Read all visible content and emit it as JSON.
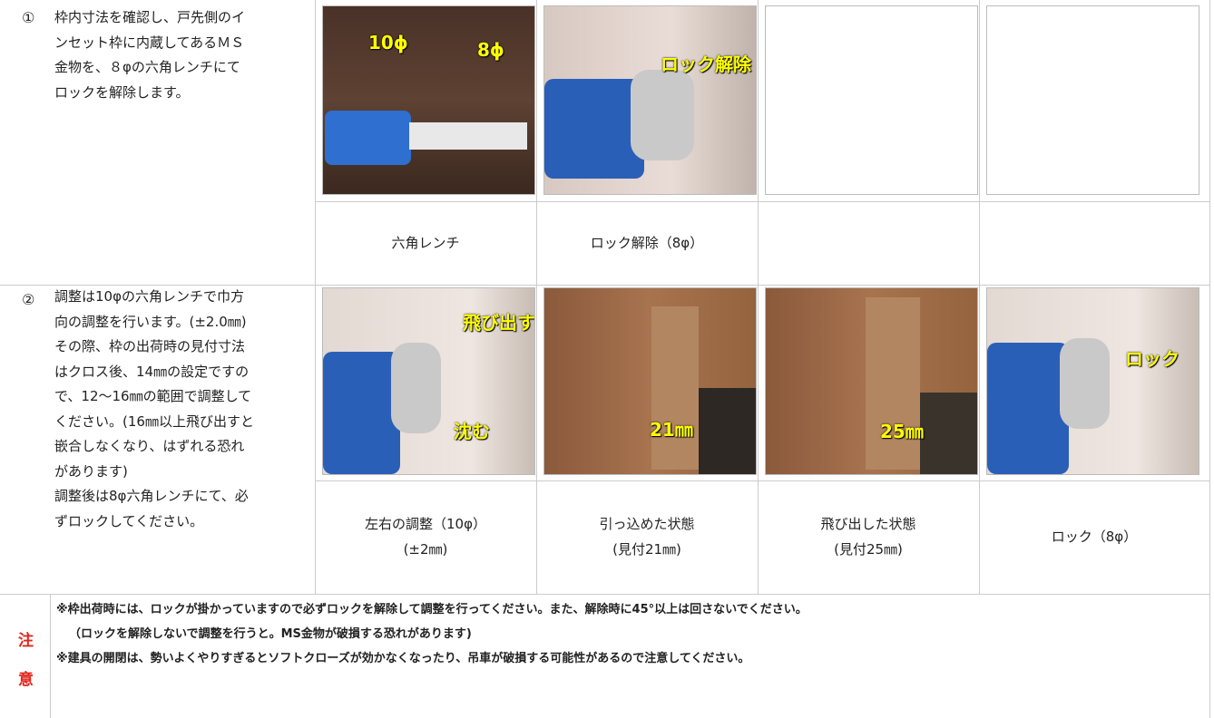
{
  "steps": [
    {
      "number": "①",
      "lines": [
        "枠内寸法を確認し、戸先側のイ",
        "ンセット枠に内蔵してあるＭＳ",
        "金物を、８φの六角レンチにて",
        "ロックを解除します。"
      ],
      "images": [
        {
          "labels": [
            "10ϕ",
            "8ϕ"
          ]
        },
        {
          "labels": [
            "ロック解除"
          ]
        }
      ],
      "captions": [
        [
          "六角レンチ"
        ],
        [
          "ロック解除（8φ）"
        ]
      ]
    },
    {
      "number": "②",
      "lines": [
        "調整は10φの六角レンチで巾方",
        "向の調整を行います。(±2.0㎜)",
        "その際、枠の出荷時の見付寸法",
        "はクロス後、14㎜の設定ですの",
        "で、12～16㎜の範囲で調整して",
        "ください。(16㎜以上飛び出すと",
        "嵌合しなくなり、はずれる恐れ",
        "があります)",
        "調整後は8φ六角レンチにて、必",
        "ずロックしてください。"
      ],
      "images": [
        {
          "labels": [
            "飛び出す",
            "沈む"
          ]
        },
        {
          "labels": [
            "21㎜"
          ]
        },
        {
          "labels": [
            "25㎜"
          ]
        },
        {
          "labels": [
            "ロック"
          ]
        }
      ],
      "captions": [
        [
          "左右の調整（10φ）",
          "(±2㎜)"
        ],
        [
          "引っ込めた状態",
          "(見付21㎜)"
        ],
        [
          "飛び出した状態",
          "(見付25㎜)"
        ],
        [
          "ロック（8φ）"
        ]
      ]
    }
  ],
  "notice": {
    "label": [
      "注",
      "意"
    ],
    "lines": [
      "※枠出荷時には、ロックが掛かっていますので必ずロックを解除して調整を行ってください。また、解除時に45°以上は回さないでください。",
      "（ロックを解除しないで調整を行うと。MS金物が破損する恐れがあります)",
      "※建具の開閉は、勢いよくやりすぎるとソフトクローズが効かなくなったり、吊車が破損する可能性があるので注意してください。"
    ]
  }
}
